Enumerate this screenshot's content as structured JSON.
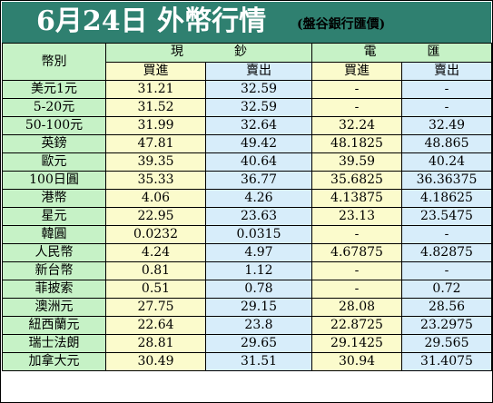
{
  "title": "6月24日 外幣行情",
  "subtitle": "(盤谷銀行匯價)",
  "header": {
    "currency_label": "幣別",
    "cash_group": [
      "現",
      "鈔"
    ],
    "wire_group": [
      "電",
      "匯"
    ],
    "buy_label": "買進",
    "sell_label": "賣出"
  },
  "colors": {
    "title_bg": "#2f8070",
    "currency_bg": "#c6f2c6",
    "buy_bg": "#fbfbcc",
    "sell_bg": "#d7edfa"
  },
  "chart_data": {
    "type": "table",
    "title": "6月24日 外幣行情",
    "subtitle": "(盤谷銀行匯價)",
    "columns": [
      "幣別",
      "現鈔 買進",
      "現鈔 賣出",
      "電匯 買進",
      "電匯 賣出"
    ],
    "rows": [
      [
        "美元1元",
        "31.21",
        "32.59",
        "-",
        "-"
      ],
      [
        "5-20元",
        "31.52",
        "32.59",
        "-",
        "-"
      ],
      [
        "50-100元",
        "31.99",
        "32.64",
        "32.24",
        "32.49"
      ],
      [
        "英鎊",
        "47.81",
        "49.42",
        "48.1825",
        "48.865"
      ],
      [
        "歐元",
        "39.35",
        "40.64",
        "39.59",
        "40.24"
      ],
      [
        "100日圓",
        "35.33",
        "36.77",
        "35.6825",
        "36.36375"
      ],
      [
        "港幣",
        "4.06",
        "4.26",
        "4.13875",
        "4.18625"
      ],
      [
        "星元",
        "22.95",
        "23.63",
        "23.13",
        "23.5475"
      ],
      [
        "韓圓",
        "0.0232",
        "0.0315",
        "-",
        "-"
      ],
      [
        "人民幣",
        "4.24",
        "4.97",
        "4.67875",
        "4.82875"
      ],
      [
        "新台幣",
        "0.81",
        "1.12",
        "-",
        "-"
      ],
      [
        "菲披索",
        "0.51",
        "0.78",
        "-",
        "0.72"
      ],
      [
        "澳洲元",
        "27.75",
        "29.15",
        "28.08",
        "28.56"
      ],
      [
        "紐西蘭元",
        "22.64",
        "23.8",
        "22.8725",
        "23.2975"
      ],
      [
        "瑞士法朗",
        "28.81",
        "29.65",
        "29.1425",
        "29.565"
      ],
      [
        "加拿大元",
        "30.49",
        "31.51",
        "30.94",
        "31.4075"
      ]
    ]
  }
}
